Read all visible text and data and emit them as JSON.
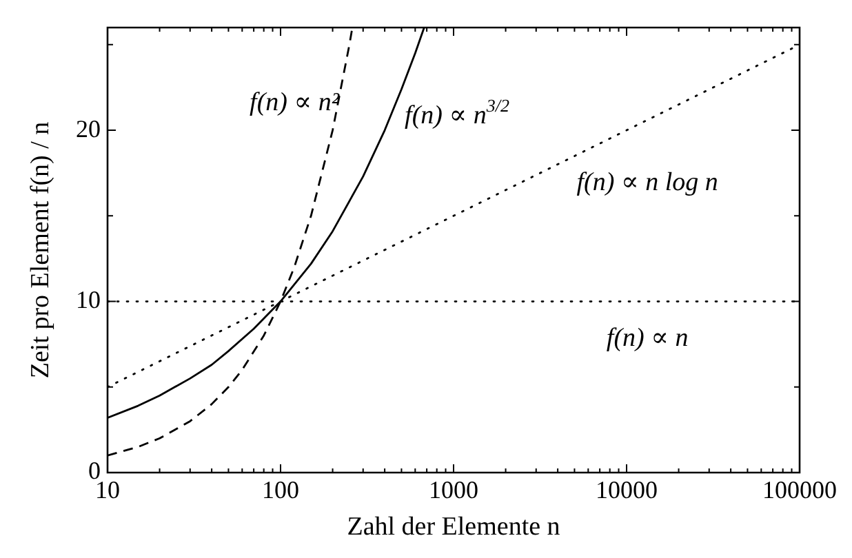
{
  "chart_data": {
    "type": "line",
    "xlabel": "Zahl der Elemente n",
    "ylabel": "Zeit pro Element f(n) / n",
    "log": "x",
    "grid": false,
    "legend": false,
    "marker": "none",
    "xlim": [
      10,
      100000
    ],
    "ylim": [
      0,
      26
    ],
    "xticks": [
      10,
      {
        "value": 20,
        "label": null
      },
      {
        "value": 30,
        "label": null
      },
      {
        "value": 40,
        "label": null
      },
      {
        "value": 50,
        "label": null
      },
      {
        "value": 60,
        "label": null
      },
      {
        "value": 70,
        "label": null
      },
      {
        "value": 80,
        "label": null
      },
      {
        "value": 90,
        "label": null
      },
      100,
      {
        "value": 200,
        "label": null
      },
      {
        "value": 300,
        "label": null
      },
      {
        "value": 400,
        "label": null
      },
      {
        "value": 500,
        "label": null
      },
      {
        "value": 600,
        "label": null
      },
      {
        "value": 700,
        "label": null
      },
      {
        "value": 800,
        "label": null
      },
      {
        "value": 900,
        "label": null
      },
      1000,
      {
        "value": 2000,
        "label": null
      },
      {
        "value": 3000,
        "label": null
      },
      {
        "value": 4000,
        "label": null
      },
      {
        "value": 5000,
        "label": null
      },
      {
        "value": 6000,
        "label": null
      },
      {
        "value": 7000,
        "label": null
      },
      {
        "value": 8000,
        "label": null
      },
      {
        "value": 9000,
        "label": null
      },
      10000,
      {
        "value": 20000,
        "label": null
      },
      {
        "value": 30000,
        "label": null
      },
      {
        "value": 40000,
        "label": null
      },
      {
        "value": 50000,
        "label": null
      },
      {
        "value": 60000,
        "label": null
      },
      {
        "value": 70000,
        "label": null
      },
      {
        "value": 80000,
        "label": null
      },
      {
        "value": 90000,
        "label": null
      },
      100000
    ],
    "yticks": [
      0,
      {
        "value": 5,
        "label": null
      },
      10,
      {
        "value": 15,
        "label": null
      },
      20,
      {
        "value": 25,
        "label": null
      }
    ],
    "series": [
      {
        "name": "f(n) ∝ n²",
        "color": "#000000",
        "line_style": "dashed",
        "x": [
          10,
          15,
          20,
          30,
          40,
          50,
          60,
          80,
          100,
          120,
          150,
          200,
          250,
          260
        ],
        "values": [
          1,
          1.5,
          2,
          3,
          4,
          5,
          6,
          8,
          10,
          12,
          15,
          20,
          25,
          26
        ]
      },
      {
        "name": "f(n) ∝ n$^{3/2}$",
        "color": "#000000",
        "line_style": "solid",
        "x": [
          10,
          15,
          20,
          30,
          40,
          50,
          70,
          100,
          150,
          200,
          300,
          400,
          500,
          600,
          676
        ],
        "values": [
          3.2,
          3.9,
          4.5,
          5.5,
          6.3,
          7.1,
          8.4,
          10,
          12.2,
          14.1,
          17.3,
          20,
          22.4,
          24.5,
          26
        ]
      },
      {
        "name": "f(n) ∝ n log n",
        "color": "#000000",
        "line_style": "dotted",
        "x": [
          10,
          100,
          1000,
          10000,
          100000
        ],
        "values": [
          5,
          10,
          15,
          20,
          25
        ]
      },
      {
        "name": "f(n) ∝ n",
        "color": "#000000",
        "line_style": "dotted",
        "x": [
          10,
          100000
        ],
        "values": [
          10,
          10
        ]
      }
    ]
  }
}
